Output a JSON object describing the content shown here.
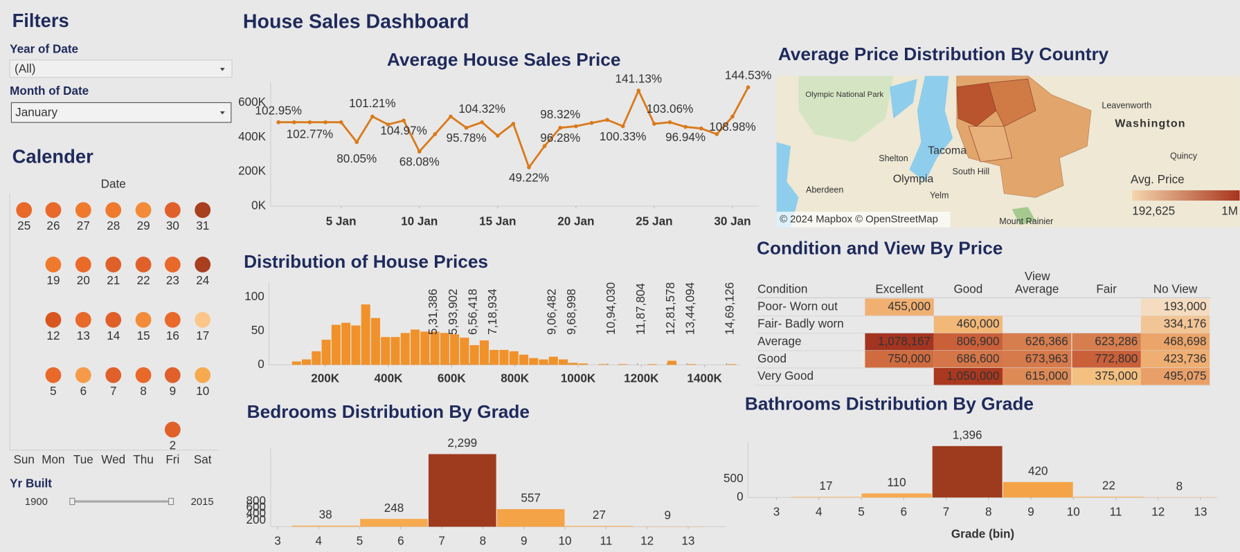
{
  "dashboard_title": "House Sales Dashboard",
  "filters": {
    "title": "Filters",
    "year_label": "Year of Date",
    "year_value": "(All)",
    "month_label": "Month of Date",
    "month_value": "January"
  },
  "calendar": {
    "title": "Calender",
    "header": "Date",
    "weekdays": [
      "Sun",
      "Mon",
      "Tue",
      "Wed",
      "Thu",
      "Fri",
      "Sat"
    ],
    "days": [
      25,
      26,
      27,
      28,
      29,
      30,
      31,
      19,
      20,
      21,
      22,
      23,
      24,
      12,
      13,
      14,
      15,
      16,
      17,
      5,
      6,
      7,
      8,
      9,
      10,
      2
    ],
    "colors": [
      "#e8692a",
      "#e8692a",
      "#ef7a2e",
      "#ef7a2e",
      "#f28c3a",
      "#e0602a",
      "#a83f1f",
      "#ef7a2e",
      "#ea6a2a",
      "#e0602a",
      "#e0602a",
      "#e8692a",
      "#a83f1f",
      "#d8561f",
      "#e8692a",
      "#e0602a",
      "#f28c3a",
      "#e8692a",
      "#fcc68a",
      "#e8692a",
      "#f59a48",
      "#e0602a",
      "#e8692a",
      "#e0602a",
      "#f7a94f",
      "#e0602a"
    ]
  },
  "yr_built": {
    "label": "Yr Built",
    "min": 1900,
    "max": 2015
  },
  "chart_data": [
    {
      "type": "line",
      "title": "Average House Sales Price",
      "color": "#d97a1c",
      "x": [
        1,
        2,
        3,
        4,
        5,
        6,
        7,
        8,
        9,
        10,
        11,
        12,
        13,
        14,
        15,
        16,
        17,
        18,
        19,
        20,
        21,
        22,
        23,
        24,
        25,
        26,
        27,
        28,
        29,
        30,
        31
      ],
      "values": [
        487000,
        487000,
        487000,
        487000,
        487000,
        372000,
        520000,
        474000,
        497000,
        317000,
        418000,
        520000,
        455000,
        487000,
        409000,
        478000,
        225000,
        349000,
        455000,
        464000,
        483000,
        501000,
        464000,
        671000,
        478000,
        487000,
        460000,
        451000,
        418000,
        520000,
        690000
      ],
      "xlim": [
        0.5,
        31.7
      ],
      "ylim": [
        0,
        720000
      ],
      "xticks": [
        {
          "value": 5,
          "label": "5 Jan"
        },
        {
          "value": 10,
          "label": "10 Jan"
        },
        {
          "value": 15,
          "label": "15 Jan"
        },
        {
          "value": 20,
          "label": "20 Jan"
        },
        {
          "value": 25,
          "label": "25 Jan"
        },
        {
          "value": 30,
          "label": "30 Jan"
        }
      ],
      "yticks": [
        {
          "value": 0,
          "label": "0K"
        },
        {
          "value": 200000,
          "label": "200K"
        },
        {
          "value": 400000,
          "label": "400K"
        },
        {
          "value": 600000,
          "label": "600K"
        }
      ],
      "annotations": [
        {
          "x": 1,
          "label": "102.95%"
        },
        {
          "x": 3,
          "label": "102.77%"
        },
        {
          "x": 6,
          "label": "80.05%"
        },
        {
          "x": 7,
          "label": "101.21%"
        },
        {
          "x": 9,
          "label": "104.97%"
        },
        {
          "x": 10,
          "label": "68.08%"
        },
        {
          "x": 13,
          "label": "95.78%"
        },
        {
          "x": 14,
          "label": "104.32%"
        },
        {
          "x": 17,
          "label": "49.22%"
        },
        {
          "x": 19,
          "label": "98.32%"
        },
        {
          "x": 19,
          "label": "96.28%"
        },
        {
          "x": 23,
          "label": "100.33%"
        },
        {
          "x": 24,
          "label": "141.13%"
        },
        {
          "x": 26,
          "label": "103.06%"
        },
        {
          "x": 27,
          "label": "96.94%"
        },
        {
          "x": 30,
          "label": "108.98%"
        },
        {
          "x": 31,
          "label": "144.53%"
        }
      ]
    },
    {
      "type": "histogram",
      "title": "Distribution of House Prices",
      "color": "#f0922b",
      "bins": [
        93750,
        125000,
        156250,
        187500,
        218750,
        250000,
        281250,
        312500,
        343750,
        375000,
        406250,
        437500,
        468750,
        500000,
        531250,
        562500,
        593750,
        625000,
        656250,
        687500,
        718750,
        750000,
        781250,
        812500,
        843750,
        875000,
        906250,
        937500,
        968750,
        1000000,
        1031250,
        1062500,
        1093750,
        1125000,
        1156250,
        1187500,
        1218750,
        1250000,
        1281250,
        1312500,
        1343750,
        1375000,
        1406250,
        1437500,
        1468750,
        1500000
      ],
      "values": [
        5,
        8,
        20,
        37,
        59,
        62,
        58,
        89,
        69,
        41,
        41,
        47,
        52,
        49,
        49,
        47,
        45,
        40,
        29,
        36,
        22,
        22,
        20,
        15,
        10,
        8,
        12,
        8,
        3,
        2,
        0,
        1,
        0,
        1,
        0,
        0,
        1,
        0,
        6,
        0,
        1,
        0,
        0,
        0,
        1
      ],
      "xlim": [
        22500,
        1510000
      ],
      "ylim": [
        0,
        121
      ],
      "xticks": [
        {
          "value": 200000,
          "label": "200K"
        },
        {
          "value": 400000,
          "label": "400K"
        },
        {
          "value": 600000,
          "label": "600K"
        },
        {
          "value": 800000,
          "label": "800K"
        },
        {
          "value": 1000000,
          "label": "1000K"
        },
        {
          "value": 1200000,
          "label": "1200K"
        },
        {
          "value": 1400000,
          "label": "1400K"
        }
      ],
      "yticks": [
        0,
        50,
        100
      ],
      "annotations": [
        {
          "value": 531386,
          "label": "5,31,386"
        },
        {
          "value": 593902,
          "label": "5,93,902"
        },
        {
          "value": 656418,
          "label": "6,56,418"
        },
        {
          "value": 718934,
          "label": "7,18,934"
        },
        {
          "value": 906482,
          "label": "9,06,482"
        },
        {
          "value": 968998,
          "label": "9,68,998"
        },
        {
          "value": 1094030,
          "label": "10,94,030"
        },
        {
          "value": 1187804,
          "label": "11,87,804"
        },
        {
          "value": 1281578,
          "label": "12,81,578"
        },
        {
          "value": 1344094,
          "label": "13,44,094"
        },
        {
          "value": 1469126,
          "label": "14,69,126"
        }
      ]
    },
    {
      "type": "histogram",
      "title": "Bedrooms Distribution By Grade",
      "bins": [
        3.3333,
        5,
        6.6667,
        8.3333,
        10,
        11.6667,
        13.3333
      ],
      "values": [
        38,
        248,
        2299,
        557,
        27,
        9
      ],
      "value_labels": [
        "38",
        "248",
        "2,299",
        "557",
        "27",
        "9"
      ],
      "colors": [
        "#f8b463",
        "#f7a94f",
        "#9e3b1f",
        "#f5a347",
        "#f8b463",
        "#f8b463"
      ],
      "xlim": [
        2.83,
        13.92
      ],
      "ylim": [
        0,
        2500
      ],
      "xticks": [
        3,
        4,
        5,
        6,
        7,
        8,
        9,
        10,
        11,
        12,
        13
      ],
      "yticks": [
        200,
        400,
        600,
        800
      ]
    },
    {
      "type": "histogram",
      "title": "Bathrooms Distribution By Grade",
      "x_label": "Grade (bin)",
      "bins": [
        3.3333,
        5,
        6.6667,
        8.3333,
        10,
        11.6667,
        13.3333
      ],
      "values": [
        17,
        110,
        1396,
        420,
        22,
        8
      ],
      "value_labels": [
        "17",
        "110",
        "1,396",
        "420",
        "22",
        "8"
      ],
      "colors": [
        "#f8b463",
        "#f7a94f",
        "#9e3b1f",
        "#f5a347",
        "#f8b463",
        "#f8b463"
      ],
      "xlim": [
        2.33,
        13.4
      ],
      "ylim": [
        0,
        1500
      ],
      "xticks": [
        3,
        4,
        5,
        6,
        7,
        8,
        9,
        10,
        11,
        12,
        13
      ],
      "yticks": [
        0,
        500
      ]
    }
  ],
  "map": {
    "title": "Average Price Distribution By Country",
    "legend_title": "Avg. Price",
    "legend_min": {
      "value": 192625,
      "label": "192,625"
    },
    "legend_max": {
      "value": 1000000,
      "label": "1M"
    },
    "color_low": "#f5d5ad",
    "color_high": "#a8341c",
    "credit": "© 2024 Mapbox © OpenStreetMap",
    "places": [
      "Olympic National Park",
      "Leavenworth",
      "Washington",
      "Quincy",
      "Shelton",
      "Tacoma",
      "South Hill",
      "Olympia",
      "Aberdeen",
      "Yelm",
      "Mount Rainier"
    ]
  },
  "table": {
    "title": "Condition and View By Price",
    "group_header": "View",
    "columns": [
      "Condition",
      "Excellent",
      "Good",
      "Average",
      "Fair",
      "No View"
    ],
    "rows": [
      {
        "label": "Poor- Worn out",
        "cells": [
          "455,000",
          null,
          null,
          null,
          "193,000"
        ],
        "colors": [
          "#f0b072",
          null,
          null,
          null,
          "#f5dcc0"
        ]
      },
      {
        "label": "Fair- Badly worn",
        "cells": [
          null,
          "460,000",
          null,
          null,
          "334,176"
        ],
        "colors": [
          null,
          "#f2b878",
          null,
          null,
          "#f2c596"
        ]
      },
      {
        "label": "Average",
        "cells": [
          "1,078,167",
          "806,900",
          "626,366",
          "623,286",
          "468,698"
        ],
        "colors": [
          "#a33520",
          "#c9603a",
          "#d67e4e",
          "#d67e4e",
          "#eba56a"
        ]
      },
      {
        "label": "Good",
        "cells": [
          "750,000",
          "686,600",
          "673,963",
          "772,800",
          "423,736"
        ],
        "colors": [
          "#cf6b3e",
          "#d57649",
          "#d6794b",
          "#c9603a",
          "#efae72"
        ]
      },
      {
        "label": "Very Good",
        "cells": [
          null,
          "1,050,000",
          "615,000",
          "375,000",
          "495,075"
        ],
        "colors": [
          null,
          "#a9381f",
          "#dd8a55",
          "#f4c07f",
          "#e9a068"
        ]
      }
    ]
  }
}
